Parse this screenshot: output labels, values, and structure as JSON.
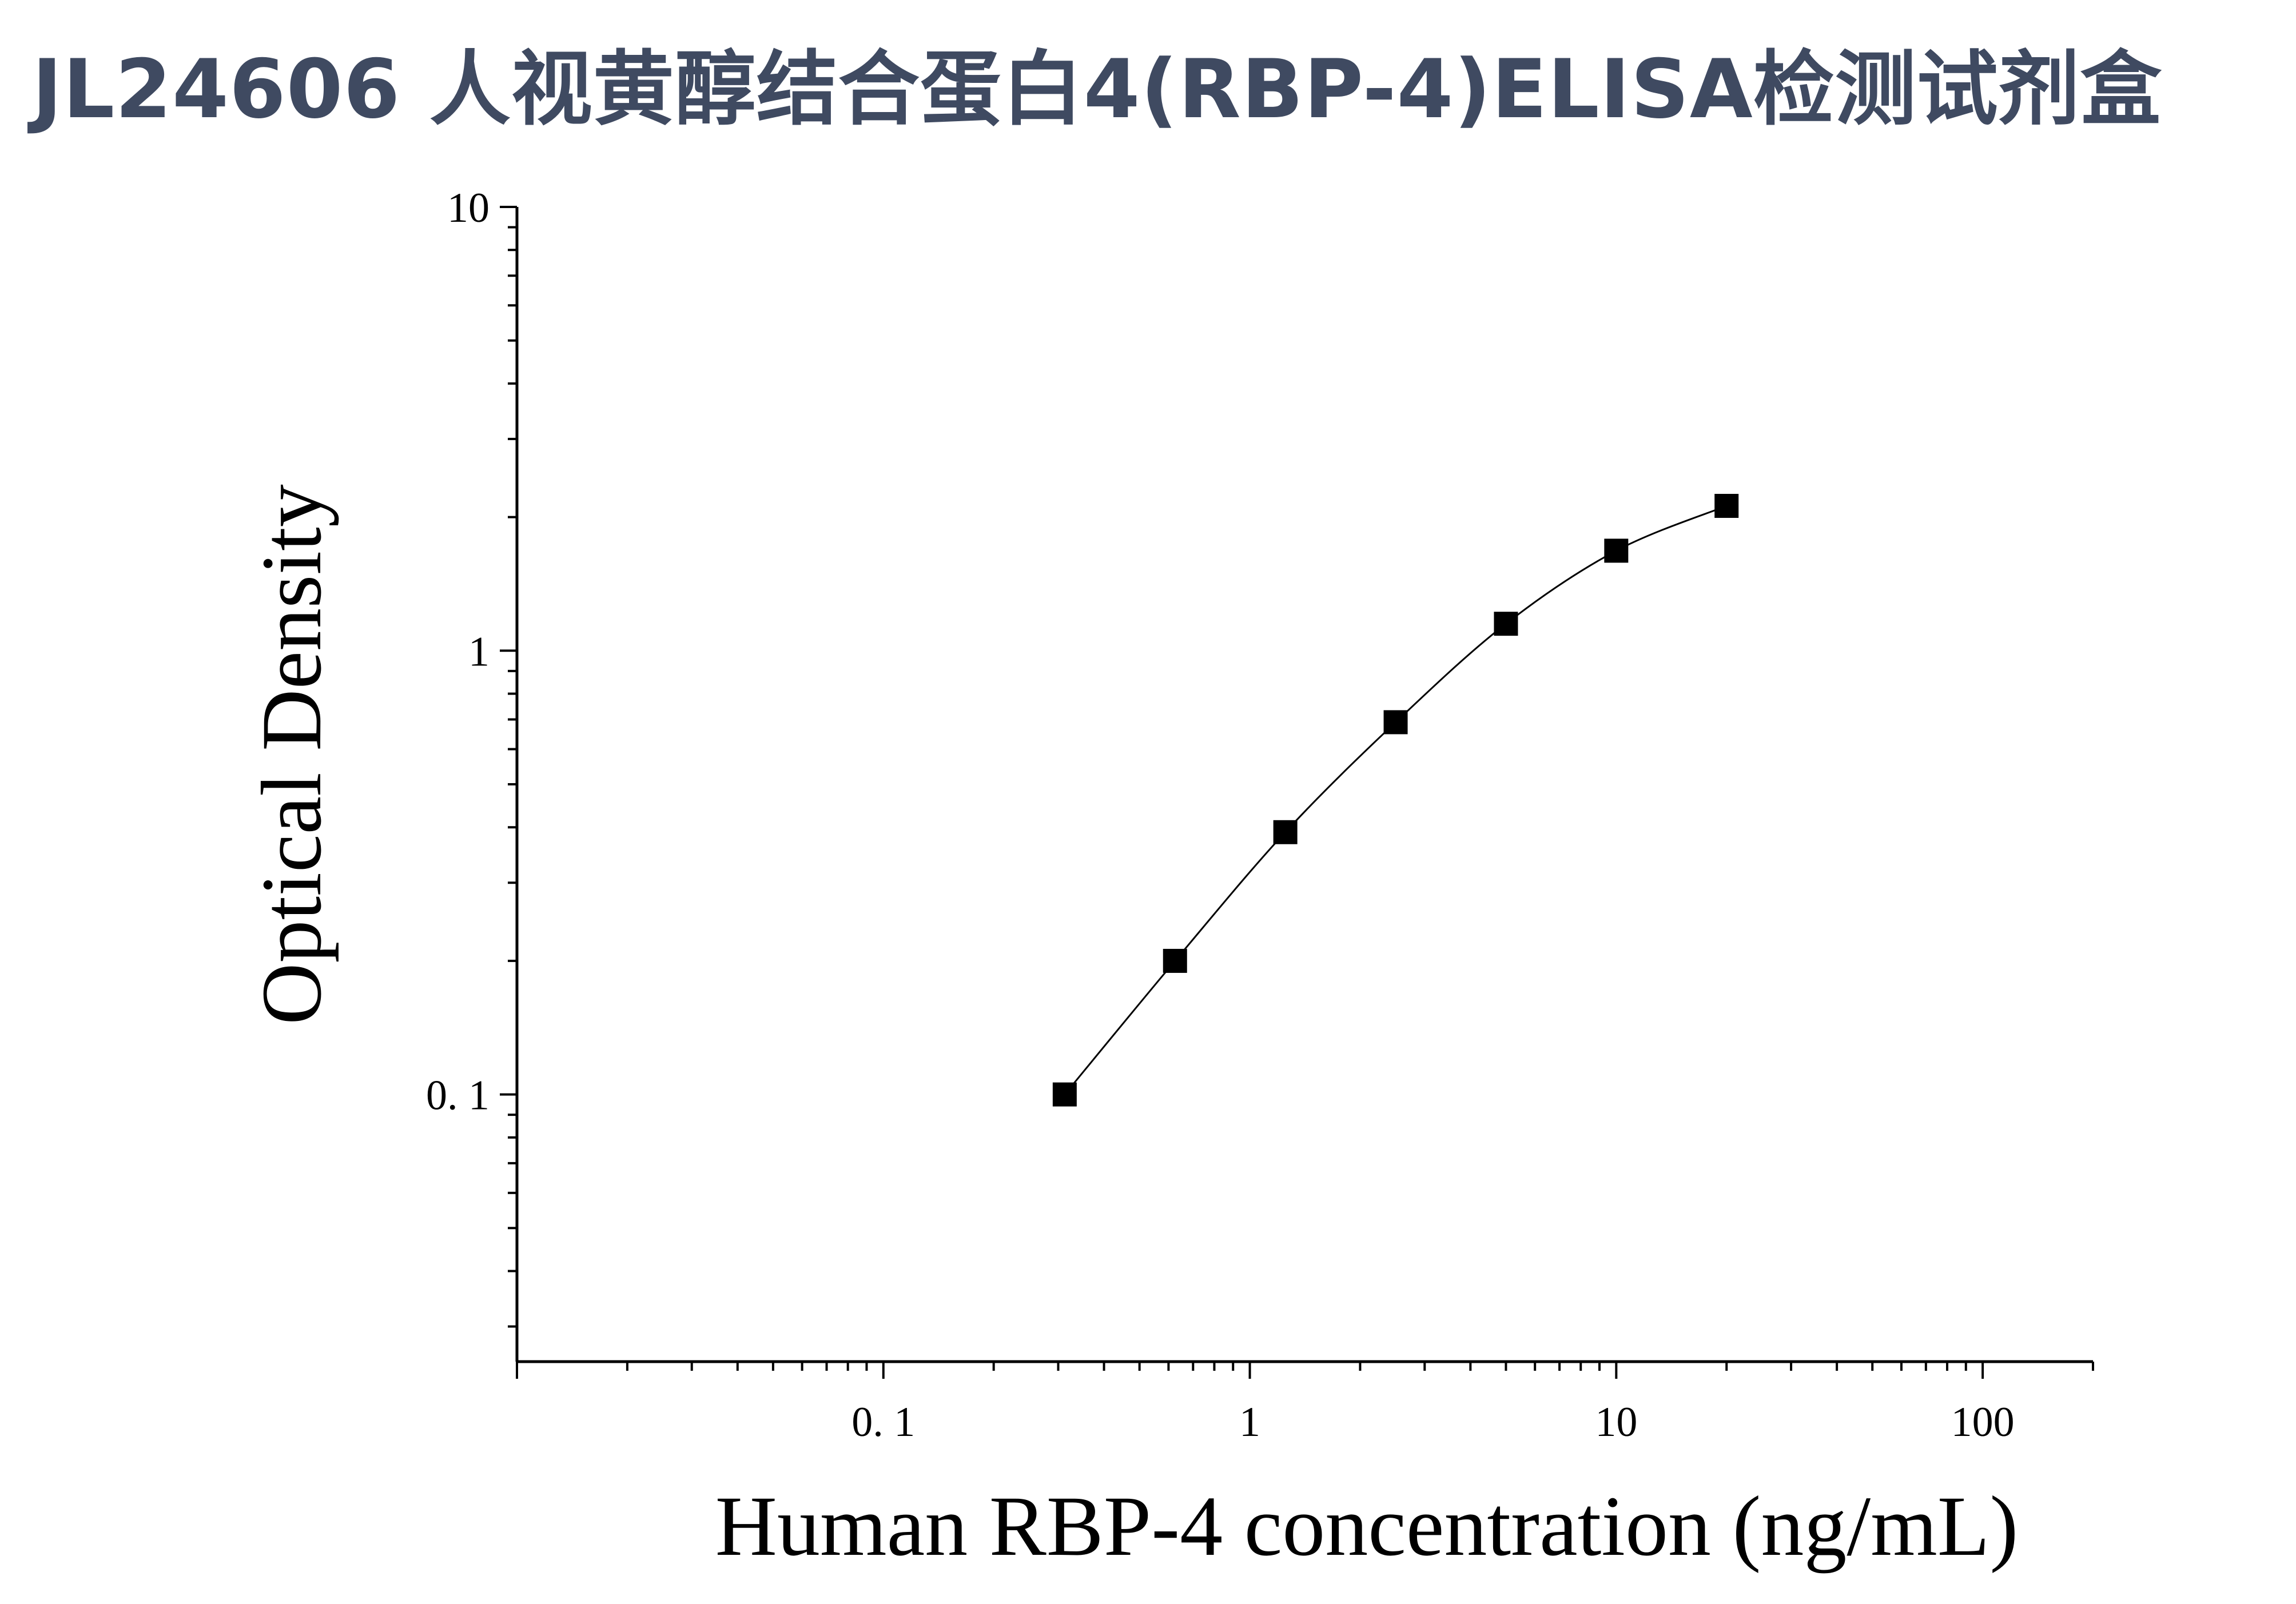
{
  "title": "JL24606 人视黄醇结合蛋白4(RBP-4)ELISA检测试剂盒",
  "chart_data": {
    "type": "scatter",
    "xlabel": "Human RBP-4 concentration (ng/mL)",
    "ylabel": "Optical Density",
    "x_scale": "log",
    "y_scale": "log",
    "xlim": [
      0.01,
      200
    ],
    "ylim": [
      0.025,
      10
    ],
    "x_ticks": [
      {
        "value": 0.1,
        "label": "0. 1"
      },
      {
        "value": 1,
        "label": "1"
      },
      {
        "value": 10,
        "label": "10"
      },
      {
        "value": 100,
        "label": "100"
      }
    ],
    "y_ticks": [
      {
        "value": 0.1,
        "label": "0. 1"
      },
      {
        "value": 1,
        "label": "1"
      },
      {
        "value": 10,
        "label": "10"
      }
    ],
    "grid": false,
    "marker": "square",
    "fit_line": "smooth curve through points",
    "colors": {
      "marker": "#000000",
      "line": "#000000",
      "title": "#3f4a61"
    },
    "points": [
      {
        "x": 0.3125,
        "y": 0.1
      },
      {
        "x": 0.625,
        "y": 0.2
      },
      {
        "x": 1.25,
        "y": 0.39
      },
      {
        "x": 2.5,
        "y": 0.69
      },
      {
        "x": 5,
        "y": 1.15
      },
      {
        "x": 10,
        "y": 1.68
      },
      {
        "x": 20,
        "y": 2.12
      }
    ]
  }
}
